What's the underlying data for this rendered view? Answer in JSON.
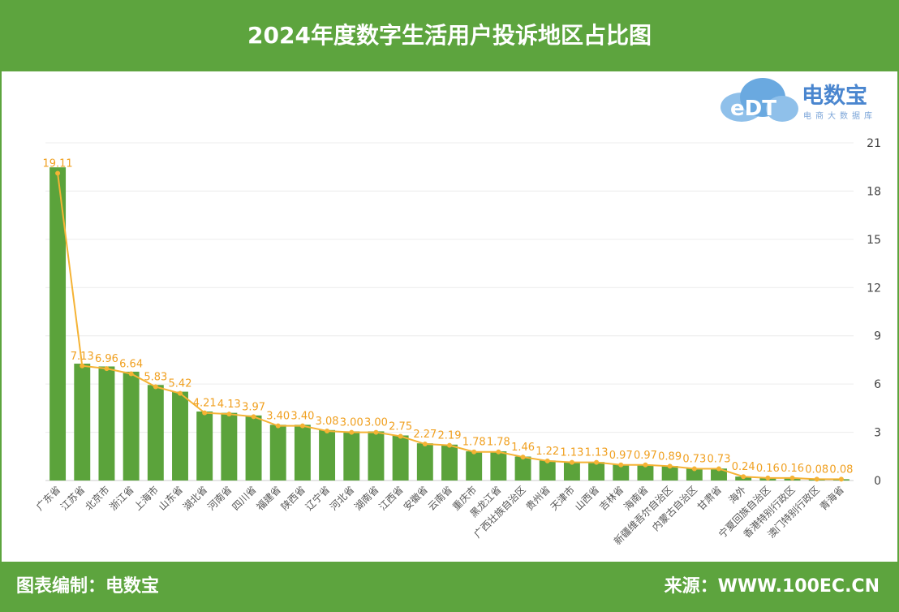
{
  "header": {
    "title": "2024年度数字生活用户投诉地区占比图"
  },
  "logo": {
    "name": "电数宝",
    "sub": "电商大数据库"
  },
  "footer": {
    "left": "图表编制：电数宝",
    "right": "来源：WWW.100EC.CN"
  },
  "colors": {
    "bar": "#5ba33b",
    "line": "#f5b335",
    "header": "#5da43e"
  },
  "chart_data": {
    "type": "bar",
    "title": "2024年度数字生活用户投诉地区占比图",
    "unit": "%",
    "ylim": [
      0,
      21
    ],
    "yticks": [
      0,
      3,
      6,
      9,
      12,
      15,
      18,
      21
    ],
    "grid": true,
    "categories": [
      "广东省",
      "江苏省",
      "北京市",
      "浙江省",
      "上海市",
      "山东省",
      "湖北省",
      "河南省",
      "四川省",
      "福建省",
      "陕西省",
      "辽宁省",
      "河北省",
      "湖南省",
      "江西省",
      "安徽省",
      "云南省",
      "重庆市",
      "黑龙江省",
      "广西壮族自治区",
      "贵州省",
      "天津市",
      "山西省",
      "吉林省",
      "海南省",
      "新疆维吾尔自治区",
      "内蒙古自治区",
      "甘肃省",
      "海外",
      "宁夏回族自治区",
      "香港特别行政区",
      "澳门特别行政区",
      "青海省"
    ],
    "values": [
      19.11,
      7.13,
      6.96,
      6.64,
      5.83,
      5.42,
      4.21,
      4.13,
      3.97,
      3.4,
      3.4,
      3.08,
      3.0,
      3.0,
      2.75,
      2.27,
      2.19,
      1.78,
      1.78,
      1.46,
      1.22,
      1.13,
      1.13,
      0.97,
      0.97,
      0.89,
      0.73,
      0.73,
      0.24,
      0.16,
      0.16,
      0.08,
      0.08
    ],
    "labels": [
      "19.11",
      "7.13",
      "6.96",
      "6.64",
      "5.83",
      "5.42",
      "4.21",
      "4.13",
      "3.97",
      "3.40",
      "3.40",
      "3.08",
      "3.00",
      "3.00",
      "2.75",
      "2.27",
      "2.19",
      "1.78",
      "1.78",
      "1.46",
      "1.22",
      "1.13",
      "1.13",
      "0.97",
      "0.97",
      "0.89",
      "0.73",
      "0.73",
      "0.24",
      "0.16",
      "0.16",
      "0.08",
      "0.08"
    ]
  }
}
